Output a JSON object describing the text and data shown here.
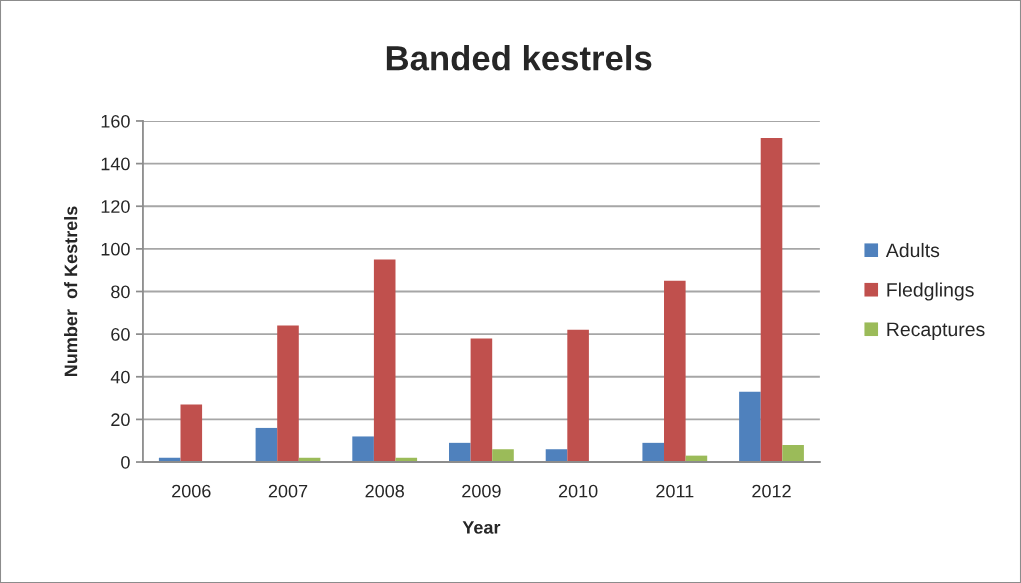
{
  "chart_data": {
    "type": "bar",
    "title": "Banded kestrels",
    "xlabel": "Year",
    "ylabel": "Number  of Kestrels",
    "categories": [
      "2006",
      "2007",
      "2008",
      "2009",
      "2010",
      "2011",
      "2012"
    ],
    "series": [
      {
        "name": "Adults",
        "color": "#4f81bd",
        "values": [
          2,
          16,
          12,
          9,
          6,
          9,
          33
        ]
      },
      {
        "name": "Fledglings",
        "color": "#c0504d",
        "values": [
          27,
          64,
          95,
          58,
          62,
          85,
          152
        ]
      },
      {
        "name": "Recaptures",
        "color": "#9bbb59",
        "values": [
          0,
          2,
          2,
          6,
          0,
          3,
          8
        ]
      }
    ],
    "ylim": [
      0,
      160
    ],
    "yticks": [
      0,
      20,
      40,
      60,
      80,
      100,
      120,
      140,
      160
    ],
    "grid": "y",
    "legend": "right"
  }
}
